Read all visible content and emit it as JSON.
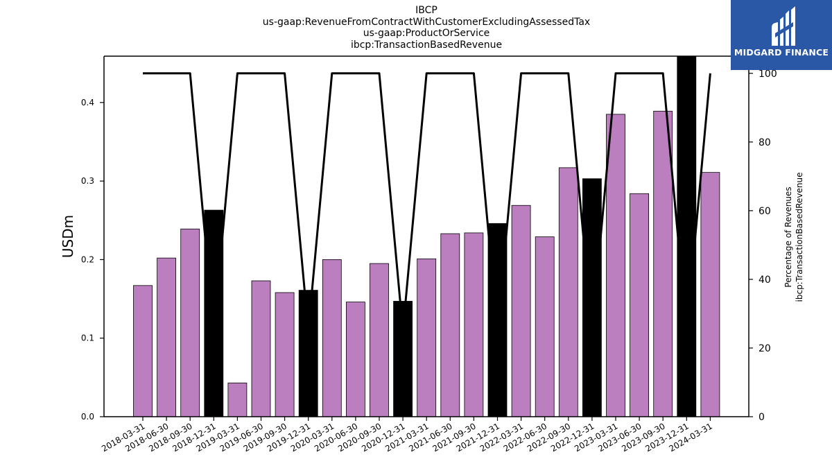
{
  "chart_data": {
    "type": "bar",
    "title_lines": [
      "IBCP",
      "us-gaap:RevenueFromContractWithCustomerExcludingAssessedTax",
      "us-gaap:ProductOrService",
      "ibcp:TransactionBasedRevenue"
    ],
    "ylabel": "USDm",
    "y2label_lines": [
      "Percentage of Revenues",
      "ibcp:TransactionBasedRevenue"
    ],
    "ylim": [
      0,
      0.459
    ],
    "y2lim": [
      0,
      105
    ],
    "yticks": [
      "0.0",
      "0.1",
      "0.2",
      "0.3",
      "0.4"
    ],
    "y2ticks": [
      "0",
      "20",
      "40",
      "60",
      "80",
      "100"
    ],
    "grid": false,
    "colors": {
      "bar": "#bb7fbf",
      "q4_bar": "#000000",
      "line": "#000000",
      "edge": "#000000"
    },
    "categories": [
      "2018-03-31",
      "2018-06-30",
      "2018-09-30",
      "2018-12-31",
      "2019-03-31",
      "2019-06-30",
      "2019-09-30",
      "2019-12-31",
      "2020-03-31",
      "2020-06-30",
      "2020-09-30",
      "2020-12-31",
      "2021-03-31",
      "2021-06-30",
      "2021-09-30",
      "2021-12-31",
      "2022-03-31",
      "2022-06-30",
      "2022-09-30",
      "2022-12-31",
      "2023-03-31",
      "2023-06-30",
      "2023-09-30",
      "2023-12-31",
      "2024-03-31"
    ],
    "series": [
      {
        "axis": "left",
        "values": [
          0.167,
          0.202,
          0.239,
          0.263,
          0.043,
          0.173,
          0.158,
          0.161,
          0.2,
          0.146,
          0.195,
          0.147,
          0.201,
          0.233,
          0.234,
          0.246,
          0.269,
          0.229,
          0.317,
          0.303,
          0.385,
          0.284,
          0.389,
          0.459,
          0.311
        ],
        "highlight": [
          3,
          7,
          11,
          15,
          19,
          23
        ]
      },
      {
        "axis": "right",
        "values": [
          100,
          100,
          100,
          25,
          100,
          100,
          100,
          25,
          100,
          100,
          100,
          25,
          100,
          100,
          100,
          25,
          100,
          100,
          100,
          25,
          100,
          100,
          100,
          25,
          100
        ]
      }
    ]
  },
  "logo": {
    "text": "MIDGARD FINANCE"
  }
}
